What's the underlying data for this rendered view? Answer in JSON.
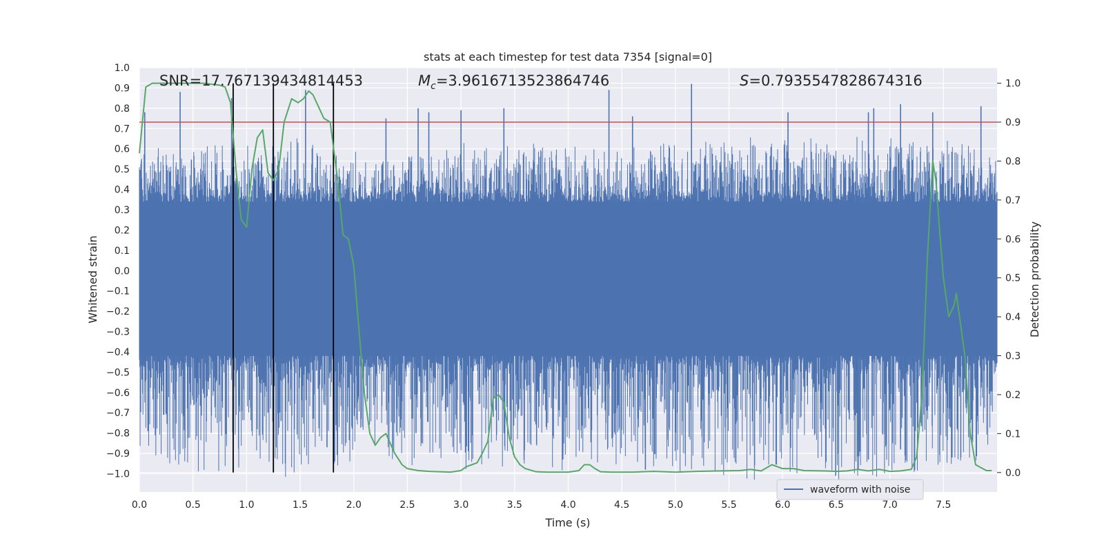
{
  "chart_data": {
    "type": "line",
    "title": "stats at each timestep for test data 7354 [signal=0]",
    "xlabel": "Time (s)",
    "ylabel": "Whitened strain",
    "y2label": "Detection probability",
    "xlim": [
      0,
      8
    ],
    "ylim": [
      -1.09,
      1.0
    ],
    "y2lim": [
      -0.05,
      1.04
    ],
    "x_ticks": [
      "0.0",
      "0.5",
      "1.0",
      "1.5",
      "2.0",
      "2.5",
      "3.0",
      "3.5",
      "4.0",
      "4.5",
      "5.0",
      "5.5",
      "6.0",
      "6.5",
      "7.0",
      "7.5"
    ],
    "y_ticks": [
      "1.0",
      "0.9",
      "0.8",
      "0.7",
      "0.6",
      "0.5",
      "0.4",
      "0.3",
      "0.2",
      "0.1",
      "0.0",
      "−0.1",
      "−0.2",
      "−0.3",
      "−0.4",
      "−0.5",
      "−0.6",
      "−0.7",
      "−0.8",
      "−0.9",
      "−1.0"
    ],
    "y2_ticks": [
      "1.0",
      "0.9",
      "0.8",
      "0.7",
      "0.6",
      "0.5",
      "0.4",
      "0.3",
      "0.2",
      "0.1",
      "0.0"
    ],
    "annotations": {
      "snr": "SNR=17.767139434814453",
      "mc_symbol": "M",
      "mc_sub": "c",
      "mc_value": "=3.9616713523864746",
      "s_symbol": "S",
      "s_value": "=0.7935547828674316"
    },
    "legend": {
      "label": "waveform with noise",
      "placement": "lower-right"
    },
    "threshold": {
      "value": 0.9,
      "axis": "y2",
      "color": "#c44e52"
    },
    "vertical_lines": [
      0.875,
      1.25,
      1.81
    ],
    "vertical_line_color": "#000000",
    "waveform": {
      "name": "waveform with noise",
      "color": "#4c72b0",
      "dense_band": [
        -0.42,
        0.34
      ],
      "peak_envelope": [
        [
          0.0,
          0.55
        ],
        [
          0.5,
          0.6
        ],
        [
          1.0,
          0.6
        ],
        [
          1.5,
          0.62
        ],
        [
          2.0,
          0.55
        ],
        [
          3.0,
          0.6
        ],
        [
          4.0,
          0.6
        ],
        [
          5.0,
          0.6
        ],
        [
          6.0,
          0.65
        ],
        [
          7.0,
          0.65
        ],
        [
          8.0,
          0.6
        ]
      ],
      "tall_spikes": [
        [
          0.05,
          0.78
        ],
        [
          0.38,
          0.88
        ],
        [
          0.86,
          0.85
        ],
        [
          1.55,
          0.89
        ],
        [
          2.3,
          0.75
        ],
        [
          2.6,
          0.8
        ],
        [
          2.7,
          0.78
        ],
        [
          3.0,
          0.79
        ],
        [
          3.4,
          0.8
        ],
        [
          4.38,
          0.89
        ],
        [
          4.6,
          0.76
        ],
        [
          5.15,
          0.92
        ],
        [
          6.05,
          0.78
        ],
        [
          6.8,
          0.78
        ],
        [
          6.85,
          0.8
        ],
        [
          7.1,
          0.82
        ],
        [
          7.4,
          0.78
        ],
        [
          7.85,
          0.81
        ]
      ],
      "deep_spikes": [
        [
          0.08,
          -0.79
        ],
        [
          1.05,
          -0.79
        ],
        [
          1.2,
          -0.7
        ],
        [
          1.75,
          -0.87
        ],
        [
          2.58,
          -0.8
        ],
        [
          3.3,
          -0.72
        ],
        [
          3.95,
          -0.93
        ],
        [
          4.72,
          -0.98
        ],
        [
          6.8,
          -0.93
        ],
        [
          7.1,
          -0.88
        ],
        [
          7.58,
          -0.92
        ]
      ]
    },
    "probability": {
      "name": "detection probability",
      "color": "#55a868",
      "axis": "y2",
      "x": [
        0.0,
        0.06,
        0.12,
        0.2,
        0.3,
        0.45,
        0.6,
        0.75,
        0.8,
        0.85,
        0.9,
        0.95,
        1.0,
        1.05,
        1.1,
        1.15,
        1.2,
        1.25,
        1.3,
        1.35,
        1.42,
        1.48,
        1.53,
        1.58,
        1.62,
        1.67,
        1.72,
        1.78,
        1.85,
        1.9,
        1.95,
        2.0,
        2.05,
        2.1,
        2.15,
        2.2,
        2.25,
        2.3,
        2.38,
        2.45,
        2.5,
        2.6,
        2.7,
        2.8,
        2.9,
        3.0,
        3.05,
        3.1,
        3.15,
        3.2,
        3.25,
        3.3,
        3.35,
        3.4,
        3.45,
        3.5,
        3.55,
        3.6,
        3.7,
        3.8,
        3.9,
        4.0,
        4.1,
        4.15,
        4.2,
        4.25,
        4.3,
        4.4,
        4.5,
        4.6,
        4.7,
        4.8,
        5.0,
        5.2,
        5.4,
        5.6,
        5.7,
        5.8,
        5.85,
        5.9,
        5.95,
        6.0,
        6.1,
        6.2,
        6.4,
        6.5,
        6.6,
        6.7,
        6.8,
        6.9,
        7.0,
        7.1,
        7.2,
        7.25,
        7.3,
        7.35,
        7.4,
        7.43,
        7.47,
        7.5,
        7.55,
        7.6,
        7.62,
        7.65,
        7.7,
        7.75,
        7.8,
        7.9,
        7.95
      ],
      "y": [
        0.82,
        0.99,
        1.0,
        1.0,
        1.0,
        1.0,
        1.0,
        0.995,
        0.99,
        0.95,
        0.78,
        0.65,
        0.63,
        0.78,
        0.86,
        0.88,
        0.77,
        0.75,
        0.78,
        0.9,
        0.96,
        0.95,
        0.96,
        0.98,
        0.97,
        0.94,
        0.91,
        0.9,
        0.75,
        0.61,
        0.6,
        0.53,
        0.36,
        0.2,
        0.1,
        0.07,
        0.09,
        0.1,
        0.05,
        0.02,
        0.01,
        0.005,
        0.003,
        0.002,
        0.001,
        0.005,
        0.015,
        0.02,
        0.025,
        0.05,
        0.08,
        0.19,
        0.2,
        0.18,
        0.09,
        0.04,
        0.02,
        0.01,
        0.002,
        0.001,
        0.001,
        0.001,
        0.005,
        0.02,
        0.02,
        0.01,
        0.002,
        0.001,
        0.001,
        0.001,
        0.002,
        0.003,
        0.001,
        0.003,
        0.004,
        0.005,
        0.008,
        0.004,
        0.012,
        0.02,
        0.015,
        0.01,
        0.01,
        0.005,
        0.004,
        0.003,
        0.004,
        0.008,
        0.004,
        0.008,
        0.003,
        0.004,
        0.008,
        0.04,
        0.2,
        0.55,
        0.8,
        0.75,
        0.6,
        0.5,
        0.4,
        0.43,
        0.46,
        0.4,
        0.3,
        0.1,
        0.02,
        0.005,
        0.005
      ]
    }
  }
}
